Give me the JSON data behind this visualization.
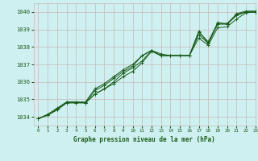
{
  "title": "Graphe pression niveau de la mer (hPa)",
  "bg_color": "#cff0f0",
  "grid_color": "#c8b8b8",
  "line_color": "#1a5c1a",
  "xlim": [
    -0.5,
    23
  ],
  "ylim": [
    1033.5,
    1040.5
  ],
  "yticks": [
    1034,
    1035,
    1036,
    1037,
    1038,
    1039,
    1040
  ],
  "xticks": [
    0,
    1,
    2,
    3,
    4,
    5,
    6,
    7,
    8,
    9,
    10,
    11,
    12,
    13,
    14,
    15,
    16,
    17,
    18,
    19,
    20,
    21,
    22,
    23
  ],
  "series": [
    [
      1033.9,
      1034.1,
      1034.4,
      1034.8,
      1034.8,
      1034.8,
      1035.3,
      1035.6,
      1035.9,
      1036.3,
      1036.6,
      1037.1,
      1037.75,
      1037.5,
      1037.5,
      1037.5,
      1037.5,
      1038.7,
      1038.2,
      1039.3,
      1039.3,
      1039.8,
      1040.0,
      1040.0
    ],
    [
      1033.9,
      1034.1,
      1034.4,
      1034.8,
      1034.8,
      1034.8,
      1035.3,
      1035.6,
      1036.0,
      1036.5,
      1036.8,
      1037.2,
      1037.8,
      1037.6,
      1037.5,
      1037.5,
      1037.5,
      1038.5,
      1038.1,
      1039.1,
      1039.15,
      1039.6,
      1039.95,
      1040.0
    ],
    [
      1033.9,
      1034.1,
      1034.45,
      1034.85,
      1034.85,
      1034.8,
      1035.5,
      1035.8,
      1036.2,
      1036.6,
      1036.9,
      1037.5,
      1037.8,
      1037.5,
      1037.5,
      1037.5,
      1037.5,
      1038.85,
      1038.3,
      1039.35,
      1039.35,
      1039.85,
      1040.0,
      1040.0
    ],
    [
      1033.9,
      1034.15,
      1034.5,
      1034.85,
      1034.85,
      1034.85,
      1035.6,
      1035.9,
      1036.3,
      1036.7,
      1037.0,
      1037.5,
      1037.8,
      1037.5,
      1037.5,
      1037.5,
      1037.5,
      1038.9,
      1038.2,
      1039.4,
      1039.3,
      1039.9,
      1040.05,
      1040.05
    ]
  ]
}
